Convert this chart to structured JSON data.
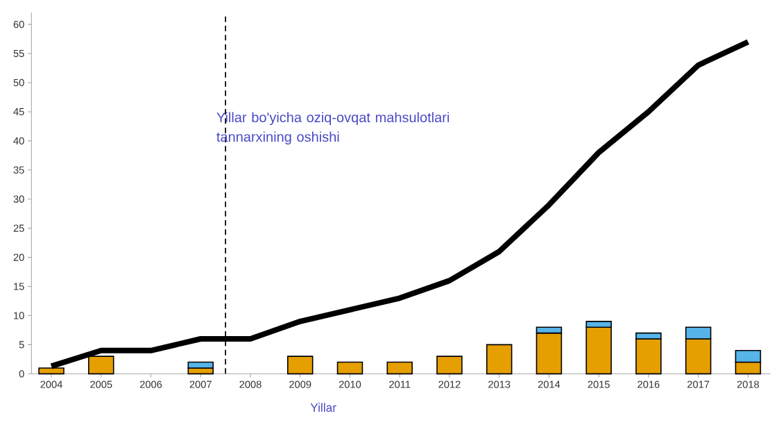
{
  "chart_data": {
    "type": "bar",
    "title": "Yillar bo'yicha oziq-ovqat mahsulotlari tannarxining oshishi",
    "xlabel": "Yillar",
    "x": [
      2004,
      2005,
      2006,
      2007,
      2008,
      2009,
      2010,
      2011,
      2012,
      2013,
      2014,
      2015,
      2016,
      2017,
      2018
    ],
    "stacked": true,
    "series": [
      {
        "color": "#e69f00",
        "values": [
          1,
          3,
          null,
          1,
          null,
          3,
          2,
          2,
          3,
          5,
          7,
          8,
          6,
          6,
          2
        ]
      },
      {
        "color": "#56b4e9",
        "values": [
          null,
          null,
          null,
          1,
          null,
          null,
          null,
          null,
          null,
          null,
          1,
          1,
          1,
          2,
          2
        ]
      },
      {
        "type": "line",
        "color": "#000000",
        "values": [
          1.3,
          4,
          4,
          6,
          6,
          9,
          11,
          13,
          16,
          21,
          29,
          38,
          45,
          53,
          57
        ]
      }
    ],
    "xlim": [
      2003.6,
      2018.45
    ],
    "xticks": [
      2004,
      2005,
      2006,
      2007,
      2008,
      2009,
      2010,
      2011,
      2012,
      2013,
      2014,
      2015,
      2016,
      2017,
      2018
    ],
    "ylim": [
      0,
      62
    ],
    "yticks": [
      0,
      5,
      10,
      15,
      20,
      25,
      30,
      35,
      40,
      45,
      50,
      55,
      60
    ],
    "ref_lines": [
      {
        "axis": "x",
        "value": 2007.5,
        "color": "#000000",
        "line_style": "dashed"
      }
    ]
  }
}
